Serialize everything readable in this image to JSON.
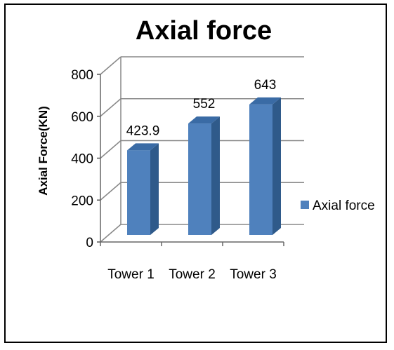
{
  "chart_data": {
    "type": "bar",
    "title": "Axial force",
    "xlabel": "",
    "ylabel": "Axial Force(KN)",
    "categories": [
      "Tower 1",
      "Tower 2",
      "Tower 3"
    ],
    "series": [
      {
        "name": "Axial force",
        "values": [
          423.9,
          552,
          643
        ],
        "labels": [
          "423.9",
          "552",
          "643"
        ]
      }
    ],
    "ylim": [
      0,
      800
    ],
    "yticks": [
      0,
      200,
      400,
      600,
      800
    ],
    "ytick_labels": [
      "0",
      "200",
      "400",
      "600",
      "800"
    ],
    "grid": true,
    "legend_position": "right",
    "colors": {
      "bar_front": "#4f81bd",
      "bar_side": "#2f5a8a",
      "bar_top": "#3a6ba5"
    }
  }
}
